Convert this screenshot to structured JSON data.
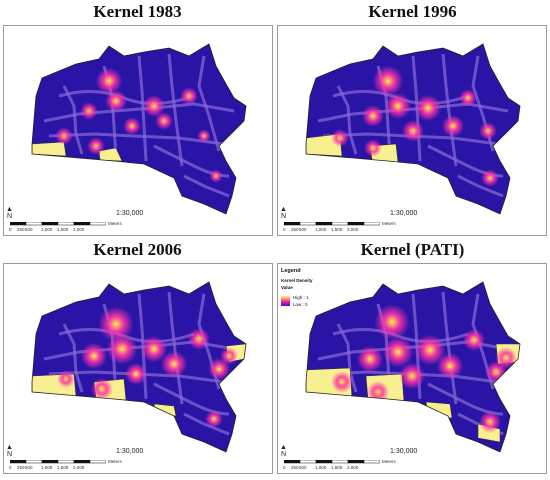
{
  "panels": [
    {
      "title": "Kernel 1983",
      "scale": "1:30,000",
      "north": "N",
      "ticks": [
        "0",
        "250",
        "500",
        "1,000",
        "1,500",
        "2,000"
      ],
      "units": "Meters"
    },
    {
      "title": "Kernel 1996",
      "scale": "1:30,000",
      "north": "N",
      "ticks": [
        "0",
        "250",
        "500",
        "1,000",
        "1,500",
        "2,000"
      ],
      "units": "Meters"
    },
    {
      "title": "Kernel 2006",
      "scale": "1:30,000",
      "north": "N",
      "ticks": [
        "0",
        "250",
        "500",
        "1,000",
        "1,500",
        "2,000"
      ],
      "units": "Meters"
    },
    {
      "title": "Kernel (PATI)",
      "scale": "1:30,000",
      "north": "N",
      "ticks": [
        "0",
        "250",
        "500",
        "1,000",
        "1,500",
        "2,000"
      ],
      "units": "Meters"
    }
  ],
  "legend": {
    "title": "Legend",
    "layer": "Kernel Density",
    "value_label": "Value",
    "high": "High : 1",
    "low": "Low : 0"
  },
  "colors": {
    "base": "#2a14a6",
    "roads": "#8a6ad8",
    "hot": "#ff33aa",
    "core": "#ffee44",
    "fill": "#f8f090"
  }
}
